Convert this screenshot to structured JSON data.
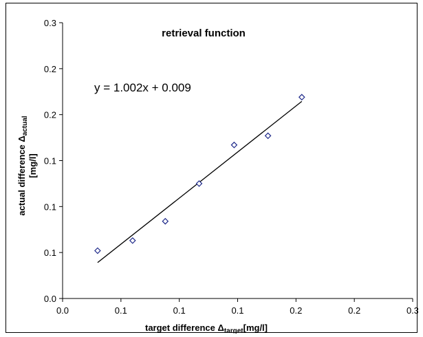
{
  "chart_data": {
    "type": "scatter",
    "title": "retrieval function",
    "xlabel": {
      "main": "target difference Δ",
      "sub": "target",
      "unit": "[mg/l]"
    },
    "ylabel": {
      "main": "actual difference Δ",
      "sub": "actual",
      "unit": "[mg/l]"
    },
    "xlim": [
      0,
      0.3
    ],
    "ylim": [
      0,
      0.3
    ],
    "x_tick_labels": [
      "0.0",
      "0.1",
      "0.1",
      "0.1",
      "0.2",
      "0.2",
      "0.3"
    ],
    "y_tick_labels": [
      "0.0",
      "0.1",
      "0.1",
      "0.1",
      "0.2",
      "0.2",
      "0.3"
    ],
    "grid": false,
    "legend": "none",
    "marker": "diamond-open",
    "marker_color": "#1f2a8a",
    "series": [
      {
        "x": [
          0.03,
          0.06,
          0.088,
          0.117,
          0.147,
          0.176,
          0.205
        ],
        "y": [
          0.052,
          0.063,
          0.084,
          0.125,
          0.167,
          0.177,
          0.219
        ]
      }
    ],
    "trendline": {
      "equation": "y = 1.002x + 0.009",
      "slope": 1.002,
      "intercept": 0.009,
      "x_range": [
        0.03,
        0.205
      ]
    }
  }
}
